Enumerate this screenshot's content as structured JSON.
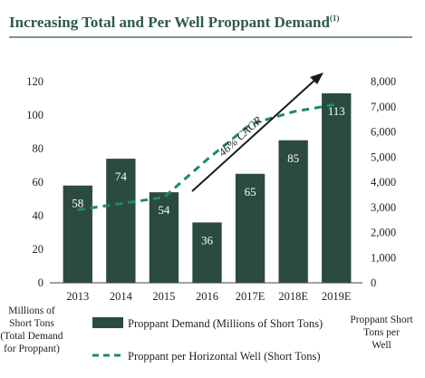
{
  "chart_data": {
    "type": "bar",
    "title": "Increasing Total and Per Well Proppant Demand",
    "title_superscript": "(1)",
    "categories": [
      "2013",
      "2014",
      "2015",
      "2016",
      "2017E",
      "2018E",
      "2019E"
    ],
    "series": [
      {
        "name": "Proppant Demand (Millions of Short Tons)",
        "type": "bar",
        "axis": "left",
        "values": [
          58,
          74,
          54,
          36,
          65,
          85,
          113
        ],
        "data_labels": [
          "58",
          "74",
          "54",
          "36",
          "65",
          "85",
          "113"
        ]
      },
      {
        "name": "Proppant per Horizontal Well (Short Tons)",
        "type": "line",
        "style": "dashed",
        "axis": "right",
        "values": [
          2900,
          3150,
          3400,
          4900,
          6300,
          6800,
          7100
        ]
      }
    ],
    "ylim": [
      0,
      120
    ],
    "yticks": [
      "0",
      "20",
      "40",
      "60",
      "80",
      "100",
      "120"
    ],
    "y2lim": [
      0,
      8000
    ],
    "y2ticks": [
      "0",
      "1,000",
      "2,000",
      "3,000",
      "4,000",
      "5,000",
      "6,000",
      "7,000",
      "8,000"
    ],
    "ylabel": "Millions of Short Tons (Total Demand for Proppant)",
    "y2label": "Proppant Short Tons per Well",
    "annotation": "46% CAGR",
    "legend_position": "bottom",
    "grid": false,
    "colors": {
      "bar": "#2b4a40",
      "line": "#1f8a66",
      "title": "#2f5a4a",
      "title_rule": "#2f5a4a"
    }
  }
}
